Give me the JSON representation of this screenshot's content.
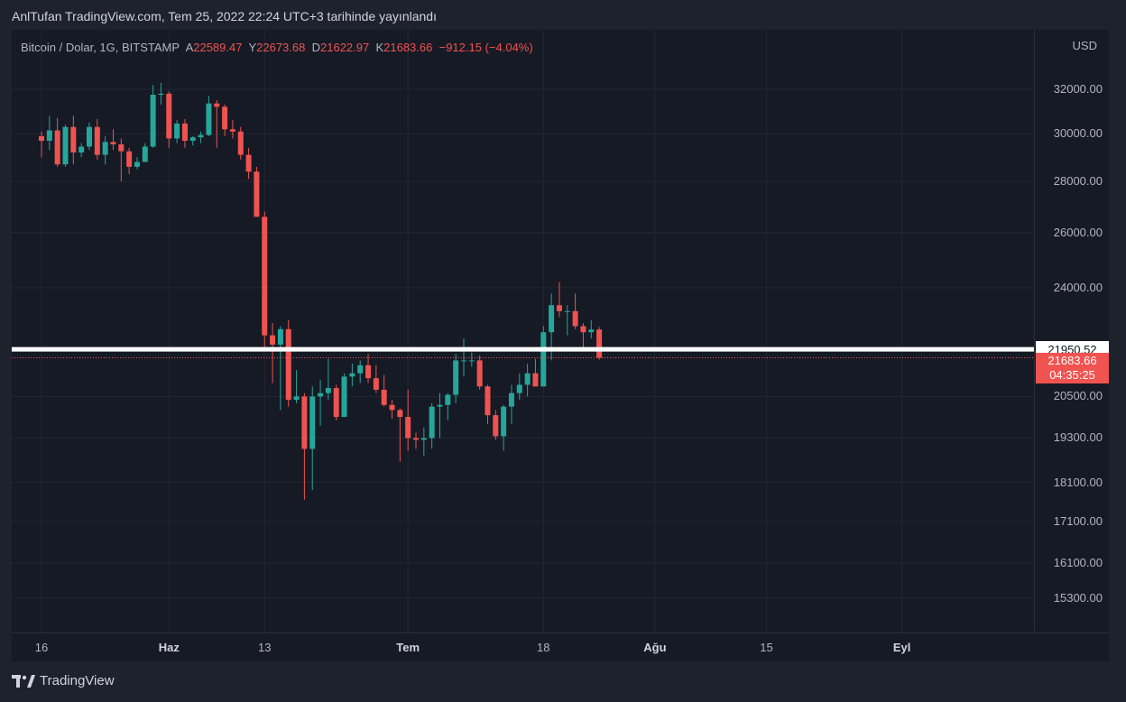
{
  "header": {
    "published": "AnlTufan TradingView.com, Tem 25, 2022 22:24 UTC+3 tarihinde yayınlandı"
  },
  "legend": {
    "symbol": "Bitcoin / Dolar, 1G, BITSTAMP",
    "open_label": "A",
    "open": "22589.47",
    "high_label": "Y",
    "high": "22673.68",
    "low_label": "D",
    "low": "21622.97",
    "close_label": "K",
    "close": "21683.66",
    "change": "−912.15 (−4.04%)"
  },
  "price_axis": {
    "currency": "USD"
  },
  "horizontal_line": {
    "label": "21950.52",
    "color": "#ffffff"
  },
  "last_price": {
    "price": "21683.66",
    "countdown": "04:35:25",
    "color": "#f05350"
  },
  "brand": {
    "name": "TradingView"
  },
  "colors": {
    "up": "#26a69a",
    "down": "#ef5350",
    "background": "#161a25",
    "grid": "#232733"
  },
  "chart_data": {
    "type": "candlestick",
    "symbol": "Bitcoin / Dolar",
    "interval": "1G",
    "exchange": "BITSTAMP",
    "y_scale": "log",
    "y_ticks": [
      32000,
      30000,
      28000,
      26000,
      24000,
      20500,
      19300,
      18100,
      17100,
      16100,
      15300
    ],
    "y_tick_labels": [
      "32000.00",
      "30000.00",
      "28000.00",
      "26000.00",
      "24000.00",
      "20500.00",
      "19300.00",
      "18100.00",
      "17100.00",
      "16100.00",
      "15300.00"
    ],
    "x_ticks": [
      {
        "label": "16",
        "date": "2022-05-16"
      },
      {
        "label": "Haz",
        "date": "2022-06-01"
      },
      {
        "label": "13",
        "date": "2022-06-13"
      },
      {
        "label": "Tem",
        "date": "2022-07-01"
      },
      {
        "label": "18",
        "date": "2022-07-18"
      },
      {
        "label": "Ağu",
        "date": "2022-08-01"
      },
      {
        "label": "15",
        "date": "2022-08-15"
      },
      {
        "label": "Eyl",
        "date": "2022-09-01"
      }
    ],
    "candles": [
      {
        "date": "2022-05-16",
        "open": 29900,
        "high": 30100,
        "low": 29000,
        "close": 29700
      },
      {
        "date": "2022-05-17",
        "open": 29700,
        "high": 30800,
        "low": 29300,
        "close": 30150
      },
      {
        "date": "2022-05-18",
        "open": 30150,
        "high": 30700,
        "low": 28600,
        "close": 28700
      },
      {
        "date": "2022-05-19",
        "open": 28700,
        "high": 30400,
        "low": 28600,
        "close": 30300
      },
      {
        "date": "2022-05-20",
        "open": 30300,
        "high": 30800,
        "low": 28700,
        "close": 29200
      },
      {
        "date": "2022-05-21",
        "open": 29200,
        "high": 29600,
        "low": 29000,
        "close": 29450
      },
      {
        "date": "2022-05-22",
        "open": 29450,
        "high": 30500,
        "low": 29300,
        "close": 30300
      },
      {
        "date": "2022-05-23",
        "open": 30300,
        "high": 30650,
        "low": 28900,
        "close": 29100
      },
      {
        "date": "2022-05-24",
        "open": 29100,
        "high": 29900,
        "low": 28700,
        "close": 29650
      },
      {
        "date": "2022-05-25",
        "open": 29650,
        "high": 30200,
        "low": 29300,
        "close": 29550
      },
      {
        "date": "2022-05-26",
        "open": 29550,
        "high": 29800,
        "low": 28000,
        "close": 29250
      },
      {
        "date": "2022-05-27",
        "open": 29250,
        "high": 29400,
        "low": 28300,
        "close": 28600
      },
      {
        "date": "2022-05-28",
        "open": 28600,
        "high": 29000,
        "low": 28500,
        "close": 28800
      },
      {
        "date": "2022-05-29",
        "open": 28800,
        "high": 29600,
        "low": 28800,
        "close": 29450
      },
      {
        "date": "2022-05-30",
        "open": 29450,
        "high": 32200,
        "low": 29400,
        "close": 31750
      },
      {
        "date": "2022-05-31",
        "open": 31750,
        "high": 32300,
        "low": 31300,
        "close": 31800
      },
      {
        "date": "2022-06-01",
        "open": 31800,
        "high": 31900,
        "low": 29400,
        "close": 29800
      },
      {
        "date": "2022-06-02",
        "open": 29800,
        "high": 30600,
        "low": 29600,
        "close": 30450
      },
      {
        "date": "2022-06-03",
        "open": 30450,
        "high": 30650,
        "low": 29400,
        "close": 29700
      },
      {
        "date": "2022-06-04",
        "open": 29700,
        "high": 29900,
        "low": 29500,
        "close": 29850
      },
      {
        "date": "2022-06-05",
        "open": 29850,
        "high": 30100,
        "low": 29600,
        "close": 29950
      },
      {
        "date": "2022-06-06",
        "open": 29950,
        "high": 31700,
        "low": 29900,
        "close": 31350
      },
      {
        "date": "2022-06-07",
        "open": 31350,
        "high": 31500,
        "low": 29400,
        "close": 31200
      },
      {
        "date": "2022-06-08",
        "open": 31200,
        "high": 31300,
        "low": 29900,
        "close": 30200
      },
      {
        "date": "2022-06-09",
        "open": 30200,
        "high": 30600,
        "low": 29800,
        "close": 30100
      },
      {
        "date": "2022-06-10",
        "open": 30100,
        "high": 30300,
        "low": 28900,
        "close": 29100
      },
      {
        "date": "2022-06-11",
        "open": 29100,
        "high": 29400,
        "low": 28100,
        "close": 28400
      },
      {
        "date": "2022-06-12",
        "open": 28400,
        "high": 28600,
        "low": 26600,
        "close": 26600
      },
      {
        "date": "2022-06-13",
        "open": 26600,
        "high": 26800,
        "low": 21900,
        "close": 22400
      },
      {
        "date": "2022-06-14",
        "open": 22400,
        "high": 22800,
        "low": 20900,
        "close": 22100
      },
      {
        "date": "2022-06-15",
        "open": 22100,
        "high": 22700,
        "low": 20100,
        "close": 22600
      },
      {
        "date": "2022-06-16",
        "open": 22600,
        "high": 22900,
        "low": 20200,
        "close": 20400
      },
      {
        "date": "2022-06-17",
        "open": 20400,
        "high": 21300,
        "low": 20300,
        "close": 20500
      },
      {
        "date": "2022-06-18",
        "open": 20500,
        "high": 20600,
        "low": 17650,
        "close": 19000
      },
      {
        "date": "2022-06-19",
        "open": 19000,
        "high": 20800,
        "low": 17900,
        "close": 20500
      },
      {
        "date": "2022-06-20",
        "open": 20500,
        "high": 21000,
        "low": 19650,
        "close": 20600
      },
      {
        "date": "2022-06-21",
        "open": 20600,
        "high": 21650,
        "low": 20400,
        "close": 20750
      },
      {
        "date": "2022-06-22",
        "open": 20750,
        "high": 20850,
        "low": 19800,
        "close": 19900
      },
      {
        "date": "2022-06-23",
        "open": 19900,
        "high": 21200,
        "low": 19900,
        "close": 21100
      },
      {
        "date": "2022-06-24",
        "open": 21100,
        "high": 21500,
        "low": 20800,
        "close": 21200
      },
      {
        "date": "2022-06-25",
        "open": 21200,
        "high": 21600,
        "low": 20900,
        "close": 21450
      },
      {
        "date": "2022-06-26",
        "open": 21450,
        "high": 21800,
        "low": 20900,
        "close": 21050
      },
      {
        "date": "2022-06-27",
        "open": 21050,
        "high": 21450,
        "low": 20600,
        "close": 20700
      },
      {
        "date": "2022-06-28",
        "open": 20700,
        "high": 21150,
        "low": 20200,
        "close": 20250
      },
      {
        "date": "2022-06-29",
        "open": 20250,
        "high": 20400,
        "low": 19850,
        "close": 20100
      },
      {
        "date": "2022-06-30",
        "open": 20100,
        "high": 20150,
        "low": 18650,
        "close": 19900
      },
      {
        "date": "2022-07-01",
        "open": 19900,
        "high": 20700,
        "low": 18950,
        "close": 19300
      },
      {
        "date": "2022-07-02",
        "open": 19300,
        "high": 19450,
        "low": 19000,
        "close": 19250
      },
      {
        "date": "2022-07-03",
        "open": 19250,
        "high": 19600,
        "low": 18800,
        "close": 19300
      },
      {
        "date": "2022-07-04",
        "open": 19300,
        "high": 20300,
        "low": 19000,
        "close": 20200
      },
      {
        "date": "2022-07-05",
        "open": 20200,
        "high": 20600,
        "low": 19300,
        "close": 20250
      },
      {
        "date": "2022-07-06",
        "open": 20250,
        "high": 20600,
        "low": 19800,
        "close": 20550
      },
      {
        "date": "2022-07-07",
        "open": 20550,
        "high": 21800,
        "low": 20300,
        "close": 21600
      },
      {
        "date": "2022-07-08",
        "open": 21600,
        "high": 22300,
        "low": 21100,
        "close": 21600
      },
      {
        "date": "2022-07-09",
        "open": 21600,
        "high": 21850,
        "low": 21400,
        "close": 21600
      },
      {
        "date": "2022-07-10",
        "open": 21600,
        "high": 21750,
        "low": 20700,
        "close": 20800
      },
      {
        "date": "2022-07-11",
        "open": 20800,
        "high": 20850,
        "low": 19700,
        "close": 19950
      },
      {
        "date": "2022-07-12",
        "open": 19950,
        "high": 20100,
        "low": 19250,
        "close": 19350
      },
      {
        "date": "2022-07-13",
        "open": 19350,
        "high": 20250,
        "low": 18950,
        "close": 20200
      },
      {
        "date": "2022-07-14",
        "open": 20200,
        "high": 20850,
        "low": 19700,
        "close": 20600
      },
      {
        "date": "2022-07-15",
        "open": 20600,
        "high": 21200,
        "low": 20400,
        "close": 20850
      },
      {
        "date": "2022-07-16",
        "open": 20850,
        "high": 21500,
        "low": 20500,
        "close": 21200
      },
      {
        "date": "2022-07-17",
        "open": 21200,
        "high": 21650,
        "low": 20800,
        "close": 20800
      },
      {
        "date": "2022-07-18",
        "open": 20800,
        "high": 22700,
        "low": 20800,
        "close": 22500
      },
      {
        "date": "2022-07-19",
        "open": 22500,
        "high": 23800,
        "low": 21600,
        "close": 23400
      },
      {
        "date": "2022-07-20",
        "open": 23400,
        "high": 24200,
        "low": 23000,
        "close": 23200
      },
      {
        "date": "2022-07-21",
        "open": 23200,
        "high": 23400,
        "low": 22400,
        "close": 23200
      },
      {
        "date": "2022-07-22",
        "open": 23200,
        "high": 23800,
        "low": 22600,
        "close": 22700
      },
      {
        "date": "2022-07-23",
        "open": 22700,
        "high": 22800,
        "low": 21900,
        "close": 22500
      },
      {
        "date": "2022-07-24",
        "open": 22500,
        "high": 22900,
        "low": 22300,
        "close": 22590
      },
      {
        "date": "2022-07-25",
        "open": 22589.47,
        "high": 22673.68,
        "low": 21622.97,
        "close": 21683.66
      }
    ],
    "grid": true
  }
}
